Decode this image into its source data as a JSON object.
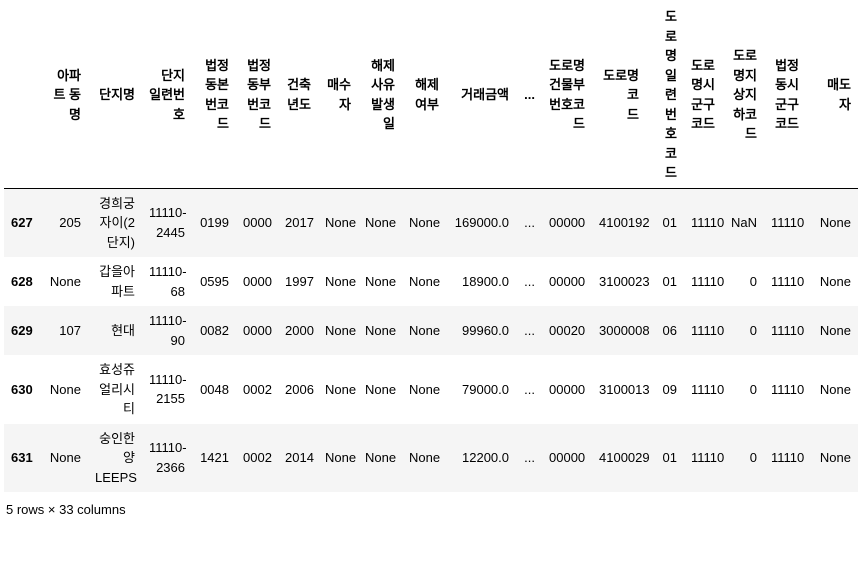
{
  "table": {
    "columns": [
      "",
      "아파\n트 동\n명",
      "단지명",
      "단지\n일련번\n호",
      "법정\n동본\n번코\n드",
      "법정\n동부\n번코\n드",
      "건축\n년도",
      "매수\n자",
      "해제\n사유\n발생\n일",
      "해제\n여부",
      "거래금액",
      "...",
      "도로명\n건물부\n번호코\n드",
      "도로명코\n드",
      "도\n로\n명\n일\n련\n번\n호\n코\n드",
      "도로\n명시\n군구\n코드",
      "도로\n명지\n상지\n하코\n드",
      "법정\n동시\n군구\n코드",
      "매도\n자"
    ],
    "rows": [
      {
        "index": "627",
        "cells": [
          "205",
          "경희궁\n자이(2\n단지)",
          "11110-\n2445",
          "0199",
          "0000",
          "2017",
          "None",
          "None",
          "None",
          "169000.0",
          "...",
          "00000",
          "4100192",
          "01",
          "11110",
          "NaN",
          "11110",
          "None"
        ]
      },
      {
        "index": "628",
        "cells": [
          "None",
          "갑을아\n파트",
          "11110-\n68",
          "0595",
          "0000",
          "1997",
          "None",
          "None",
          "None",
          "18900.0",
          "...",
          "00000",
          "3100023",
          "01",
          "11110",
          "0",
          "11110",
          "None"
        ]
      },
      {
        "index": "629",
        "cells": [
          "107",
          "현대",
          "11110-\n90",
          "0082",
          "0000",
          "2000",
          "None",
          "None",
          "None",
          "99960.0",
          "...",
          "00020",
          "3000008",
          "06",
          "11110",
          "0",
          "11110",
          "None"
        ]
      },
      {
        "index": "630",
        "cells": [
          "None",
          "효성쥬\n얼리시\n티",
          "11110-\n2155",
          "0048",
          "0002",
          "2006",
          "None",
          "None",
          "None",
          "79000.0",
          "...",
          "00000",
          "3100013",
          "09",
          "11110",
          "0",
          "11110",
          "None"
        ]
      },
      {
        "index": "631",
        "cells": [
          "None",
          "숭인한\n양\nLEEPS",
          "11110-\n2366",
          "1421",
          "0002",
          "2014",
          "None",
          "None",
          "None",
          "12200.0",
          "...",
          "00000",
          "4100029",
          "01",
          "11110",
          "0",
          "11110",
          "None"
        ]
      }
    ],
    "footer": "5 rows × 33 columns"
  },
  "colors": {
    "background": "#ffffff",
    "stripe": "#f5f5f5",
    "header_border": "#000000",
    "text": "#000000"
  }
}
